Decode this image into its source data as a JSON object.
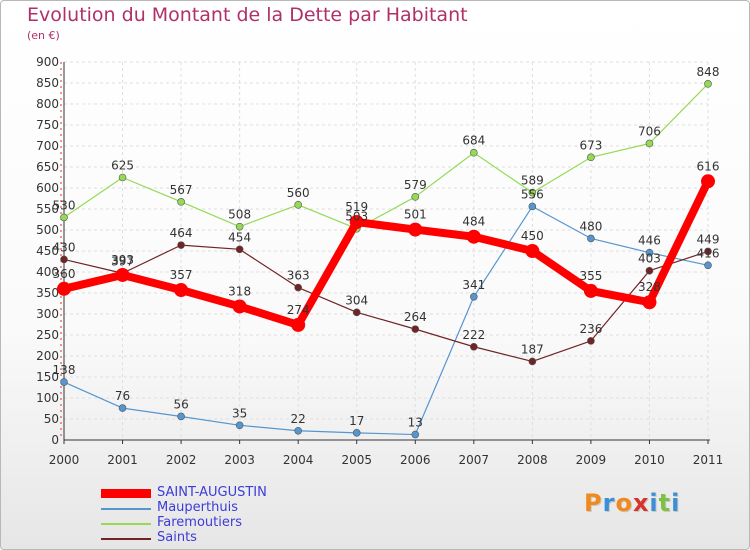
{
  "chart_data": {
    "type": "line",
    "title": "Evolution du Montant de la Dette par Habitant",
    "subtitle": "(en €)",
    "xlabel": "",
    "ylabel": "",
    "x": [
      "2000",
      "2001",
      "2002",
      "2003",
      "2004",
      "2005",
      "2006",
      "2007",
      "2008",
      "2009",
      "2010",
      "2011"
    ],
    "ylim": [
      0,
      900
    ],
    "yticks": [
      0,
      50,
      100,
      150,
      200,
      250,
      300,
      350,
      400,
      450,
      500,
      550,
      600,
      650,
      700,
      750,
      800,
      850,
      900
    ],
    "grid": true,
    "legend_position": "bottom-left",
    "series": [
      {
        "name": "SAINT-AUGUSTIN",
        "color": "#ff0000",
        "values": [
          360,
          393,
          357,
          318,
          274,
          519,
          501,
          484,
          450,
          355,
          328,
          616
        ]
      },
      {
        "name": "Mauperthuis",
        "color": "#5596cf",
        "values": [
          138,
          76,
          56,
          35,
          22,
          17,
          13,
          341,
          556,
          480,
          446,
          416
        ]
      },
      {
        "name": "Faremoutiers",
        "color": "#94da55",
        "values": [
          530,
          625,
          567,
          508,
          560,
          503,
          579,
          684,
          589,
          673,
          706,
          848
        ]
      },
      {
        "name": "Saints",
        "color": "#722326",
        "values": [
          430,
          397,
          464,
          454,
          363,
          304,
          264,
          222,
          187,
          236,
          403,
          449
        ]
      }
    ]
  },
  "brand": {
    "letters": [
      "P",
      "r",
      "o",
      "x",
      "i",
      "t",
      "i"
    ]
  }
}
